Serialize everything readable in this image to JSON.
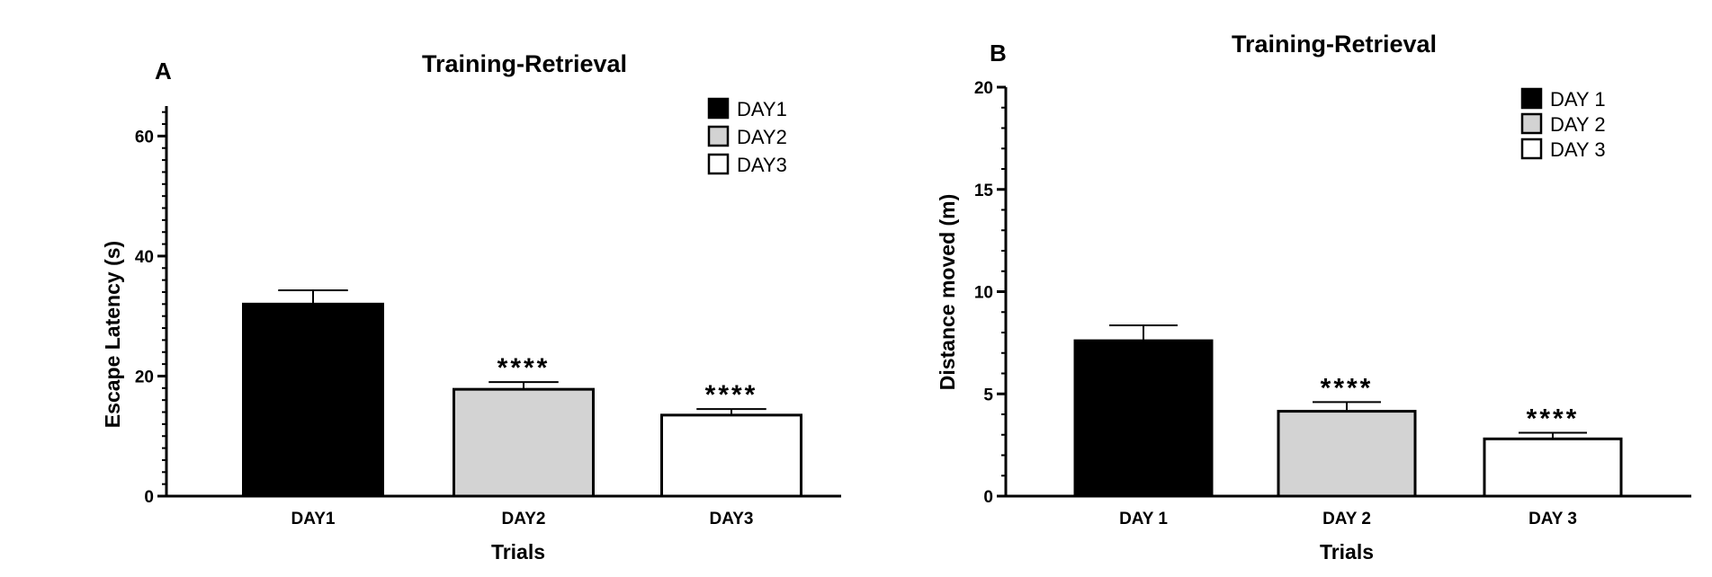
{
  "chart_data": [
    {
      "type": "bar",
      "panel_label": "A",
      "title": "Training-Retrieval",
      "xlabel": "Trials",
      "ylabel": "Escape Latency  (s)",
      "ylim": [
        0,
        65
      ],
      "yticks": [
        0,
        20,
        40,
        60
      ],
      "categories": [
        "DAY1",
        "DAY2",
        "DAY3"
      ],
      "values": [
        32.0,
        17.8,
        13.5
      ],
      "errors": [
        2.3,
        1.2,
        1.0
      ],
      "significance": [
        "",
        "****",
        "****"
      ],
      "fills": [
        "#000000",
        "#d3d3d3",
        "#ffffff"
      ],
      "legend": [
        "DAY1",
        "DAY2",
        "DAY3"
      ],
      "legend_position": "top-right",
      "grid": false
    },
    {
      "type": "bar",
      "panel_label": "B",
      "title": "Training-Retrieval",
      "xlabel": "Trials",
      "ylabel": "Distance moved (m)",
      "ylim": [
        0,
        20
      ],
      "yticks": [
        0,
        5,
        10,
        15,
        20
      ],
      "categories": [
        "DAY 1",
        "DAY 2",
        "DAY 3"
      ],
      "values": [
        7.6,
        4.15,
        2.8
      ],
      "errors": [
        0.75,
        0.45,
        0.3
      ],
      "significance": [
        "",
        "****",
        "****"
      ],
      "fills": [
        "#000000",
        "#d3d3d3",
        "#ffffff"
      ],
      "legend": [
        "DAY 1",
        "DAY 2",
        "DAY 3"
      ],
      "legend_position": "top-right",
      "grid": false
    }
  ]
}
